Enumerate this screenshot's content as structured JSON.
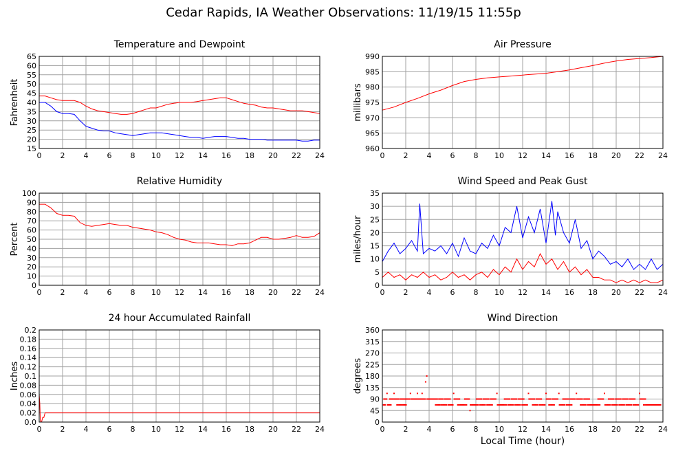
{
  "page": {
    "title": "Cedar Rapids, IA Weather Observations: 11/19/15 11:55p",
    "footer_xlabel": "Local Time (hour)"
  },
  "chart_data": [
    {
      "id": "temp",
      "type": "line",
      "title": "Temperature and Dewpoint",
      "ylabel": "Fahrenheit",
      "xlabel": "",
      "xlim": [
        0,
        24
      ],
      "ylim": [
        15,
        65
      ],
      "xticks": [
        0,
        2,
        4,
        6,
        8,
        10,
        12,
        14,
        16,
        18,
        20,
        22,
        24
      ],
      "yticks": [
        15,
        20,
        25,
        30,
        35,
        40,
        45,
        50,
        55,
        60,
        65
      ],
      "grid": true,
      "series": [
        {
          "color": "#ff0000",
          "x": [
            0,
            0.5,
            1,
            1.5,
            2,
            2.5,
            3,
            3.5,
            4,
            4.5,
            5,
            5.5,
            6,
            6.5,
            7,
            7.5,
            8,
            8.5,
            9,
            9.5,
            10,
            10.5,
            11,
            11.5,
            12,
            12.5,
            13,
            13.5,
            14,
            14.5,
            15,
            15.5,
            16,
            16.5,
            17,
            17.5,
            18,
            18.5,
            19,
            19.5,
            20,
            20.5,
            21,
            21.5,
            22,
            22.5,
            23,
            23.5,
            24
          ],
          "y": [
            43.5,
            43.5,
            42.5,
            41.5,
            41,
            41,
            41,
            40,
            38,
            36.5,
            35.5,
            35,
            34.5,
            34,
            33.5,
            33.5,
            34,
            35,
            36,
            37,
            37,
            38,
            39,
            39.5,
            40,
            40,
            40,
            40.5,
            41,
            41.5,
            42,
            42.5,
            42.5,
            41.5,
            40.5,
            39.5,
            39,
            38.5,
            37.5,
            37,
            37,
            36.5,
            36,
            35.5,
            35.5,
            35.5,
            35,
            34.5,
            34
          ]
        },
        {
          "color": "#0000ff",
          "x": [
            0,
            0.5,
            1,
            1.5,
            2,
            2.5,
            3,
            3.5,
            4,
            4.5,
            5,
            5.5,
            6,
            6.5,
            7,
            7.5,
            8,
            8.5,
            9,
            9.5,
            10,
            10.5,
            11,
            11.5,
            12,
            12.5,
            13,
            13.5,
            14,
            14.5,
            15,
            15.5,
            16,
            16.5,
            17,
            17.5,
            18,
            18.5,
            19,
            19.5,
            20,
            20.5,
            21,
            21.5,
            22,
            22.5,
            23,
            23.5,
            24
          ],
          "y": [
            40,
            40,
            38,
            35,
            34,
            34,
            33.5,
            30,
            27,
            26,
            25,
            24.5,
            24.5,
            23.5,
            23,
            22.5,
            22,
            22.5,
            23,
            23.5,
            23.5,
            23.5,
            23,
            22.5,
            22,
            21.5,
            21,
            21,
            20.5,
            21,
            21.5,
            21.5,
            21.5,
            21,
            20.5,
            20.5,
            20,
            20,
            20,
            19.5,
            19.5,
            19.5,
            19.5,
            19.5,
            19.5,
            19,
            19,
            19.5,
            19.5
          ]
        }
      ]
    },
    {
      "id": "pressure",
      "type": "line",
      "title": "Air Pressure",
      "ylabel": "millibars",
      "xlabel": "",
      "xlim": [
        0,
        24
      ],
      "ylim": [
        960,
        990
      ],
      "xticks": [
        0,
        2,
        4,
        6,
        8,
        10,
        12,
        14,
        16,
        18,
        20,
        22,
        24
      ],
      "yticks": [
        960,
        965,
        970,
        975,
        980,
        985,
        990
      ],
      "grid": true,
      "series": [
        {
          "color": "#ff0000",
          "x": [
            0,
            1,
            2,
            3,
            4,
            5,
            6,
            7,
            8,
            9,
            10,
            11,
            12,
            13,
            14,
            15,
            16,
            17,
            18,
            19,
            20,
            21,
            22,
            23,
            24
          ],
          "y": [
            972.5,
            973.5,
            975,
            976.3,
            977.8,
            979,
            980.5,
            981.8,
            982.5,
            983,
            983.3,
            983.6,
            983.9,
            984.2,
            984.5,
            985,
            985.6,
            986.3,
            987,
            987.8,
            988.5,
            989,
            989.3,
            989.6,
            990
          ]
        }
      ]
    },
    {
      "id": "humidity",
      "type": "line",
      "title": "Relative Humidity",
      "ylabel": "Percent",
      "xlabel": "",
      "xlim": [
        0,
        24
      ],
      "ylim": [
        0,
        100
      ],
      "xticks": [
        0,
        2,
        4,
        6,
        8,
        10,
        12,
        14,
        16,
        18,
        20,
        22,
        24
      ],
      "yticks": [
        0,
        10,
        20,
        30,
        40,
        50,
        60,
        70,
        80,
        90,
        100
      ],
      "grid": true,
      "series": [
        {
          "color": "#ff0000",
          "x": [
            0,
            0.5,
            1,
            1.5,
            2,
            2.5,
            3,
            3.5,
            4,
            4.5,
            5,
            5.5,
            6,
            6.5,
            7,
            7.5,
            8,
            8.5,
            9,
            9.5,
            10,
            10.5,
            11,
            11.5,
            12,
            12.5,
            13,
            13.5,
            14,
            14.5,
            15,
            15.5,
            16,
            16.5,
            17,
            17.5,
            18,
            18.5,
            19,
            19.5,
            20,
            20.5,
            21,
            21.5,
            22,
            22.5,
            23,
            23.5,
            24
          ],
          "y": [
            88,
            88,
            84,
            78,
            76,
            76,
            75,
            68,
            65,
            64,
            65,
            66,
            67,
            66,
            65,
            65,
            63,
            62,
            61,
            60,
            58,
            57,
            55,
            52,
            50,
            49,
            47,
            46,
            46,
            46,
            45,
            44,
            44,
            43,
            45,
            45,
            46,
            49,
            52,
            52,
            50,
            50,
            51,
            52,
            54,
            52,
            52,
            53,
            57
          ]
        }
      ]
    },
    {
      "id": "wind",
      "type": "line",
      "title": "Wind Speed and Peak Gust",
      "ylabel": "miles/hour",
      "xlabel": "",
      "xlim": [
        0,
        24
      ],
      "ylim": [
        0,
        35
      ],
      "xticks": [
        0,
        2,
        4,
        6,
        8,
        10,
        12,
        14,
        16,
        18,
        20,
        22,
        24
      ],
      "yticks": [
        0,
        5,
        10,
        15,
        20,
        25,
        30,
        35
      ],
      "grid": true,
      "series": [
        {
          "color": "#0000ff",
          "x": [
            0,
            0.5,
            1,
            1.5,
            2,
            2.5,
            3,
            3.2,
            3.5,
            4,
            4.5,
            5,
            5.5,
            6,
            6.5,
            7,
            7.5,
            8,
            8.5,
            9,
            9.5,
            10,
            10.5,
            11,
            11.5,
            12,
            12.5,
            13,
            13.5,
            14,
            14.5,
            14.8,
            15,
            15.5,
            16,
            16.5,
            17,
            17.5,
            18,
            18.5,
            19,
            19.5,
            20,
            20.5,
            21,
            21.5,
            22,
            22.5,
            23,
            23.5,
            24
          ],
          "y": [
            9,
            13,
            16,
            12,
            14,
            17,
            13,
            31,
            12,
            14,
            13,
            15,
            12,
            16,
            11,
            18,
            13,
            12,
            16,
            14,
            19,
            15,
            22,
            20,
            30,
            18,
            26,
            20,
            29,
            16,
            32,
            19,
            28,
            20,
            16,
            25,
            14,
            17,
            10,
            13,
            11,
            8,
            9,
            7,
            10,
            6,
            8,
            6,
            10,
            6,
            8
          ]
        },
        {
          "color": "#ff0000",
          "x": [
            0,
            0.5,
            1,
            1.5,
            2,
            2.5,
            3,
            3.5,
            4,
            4.5,
            5,
            5.5,
            6,
            6.5,
            7,
            7.5,
            8,
            8.5,
            9,
            9.5,
            10,
            10.5,
            11,
            11.5,
            12,
            12.5,
            13,
            13.5,
            14,
            14.5,
            15,
            15.5,
            16,
            16.5,
            17,
            17.5,
            18,
            18.5,
            19,
            19.5,
            20,
            20.5,
            21,
            21.5,
            22,
            22.5,
            23,
            23.5,
            24
          ],
          "y": [
            3,
            5,
            3,
            4,
            2,
            4,
            3,
            5,
            3,
            4,
            2,
            3,
            5,
            3,
            4,
            2,
            4,
            5,
            3,
            6,
            4,
            7,
            5,
            10,
            6,
            9,
            7,
            12,
            8,
            10,
            6,
            9,
            5,
            7,
            4,
            6,
            3,
            3,
            2,
            2,
            1,
            2,
            1,
            2,
            1,
            2,
            1,
            1,
            2
          ]
        }
      ]
    },
    {
      "id": "rain",
      "type": "line",
      "title": "24 hour Accumulated Rainfall",
      "ylabel": "Inches",
      "xlabel": "",
      "xlim": [
        0,
        24
      ],
      "ylim": [
        0,
        0.2
      ],
      "xticks": [
        0,
        2,
        4,
        6,
        8,
        10,
        12,
        14,
        16,
        18,
        20,
        22,
        24
      ],
      "yticks": [
        "0.0",
        "0.02",
        "0.04",
        "0.06",
        "0.08",
        "0.1",
        "0.12",
        "0.14",
        "0.16",
        "0.18",
        "0.2"
      ],
      "grid": true,
      "series": [
        {
          "color": "#ff0000",
          "x": [
            0,
            0.05,
            0.1,
            0.2,
            0.3,
            0.4,
            0.5,
            24
          ],
          "y": [
            0.06,
            0.04,
            0.0,
            0.0,
            0.01,
            0.01,
            0.02,
            0.02
          ]
        }
      ]
    },
    {
      "id": "direction",
      "type": "scatter",
      "title": "Wind Direction",
      "ylabel": "degrees",
      "xlabel": "Local Time (hour)",
      "xlim": [
        0,
        24
      ],
      "ylim": [
        0,
        360
      ],
      "xticks": [
        0,
        2,
        4,
        6,
        8,
        10,
        12,
        14,
        16,
        18,
        20,
        22,
        24
      ],
      "yticks": [
        0,
        45,
        90,
        135,
        180,
        225,
        270,
        315,
        360
      ],
      "grid": true,
      "series": [
        {
          "color": "#ff0000",
          "x": [
            0.1,
            0.3,
            0.4,
            0.6,
            0.8,
            1,
            1.2,
            1.5,
            1.7,
            1.9,
            2.1,
            2.4,
            2.6,
            2.8,
            3,
            3.2,
            3.4,
            3.6,
            3.7,
            3.8,
            4,
            4.2,
            4.5,
            4.8,
            5,
            5.3,
            5.6,
            5.9,
            6.1,
            6.4,
            6.7,
            7,
            7.3,
            7.5,
            7.7,
            8,
            8.3,
            8.6,
            8.9,
            9.2,
            9.5,
            9.8,
            10.1,
            10.4,
            10.7,
            11,
            11.3,
            11.6,
            11.9,
            12.2,
            12.5,
            12.8,
            13.1,
            13.4,
            13.7,
            14,
            14.2,
            14.5,
            14.8,
            15.1,
            15.4,
            15.7,
            16,
            16.3,
            16.6,
            16.9,
            17.2,
            17.5,
            17.8,
            18.1,
            18.4,
            18.7,
            19,
            19.3,
            19.6,
            19.9,
            20.2,
            20.5,
            20.8,
            21.1,
            21.4,
            21.7,
            22,
            22.3,
            22.6,
            22.9,
            23.2,
            23.5,
            23.8
          ],
          "y": [
            67,
            90,
            112,
            67,
            90,
            112,
            90,
            67,
            90,
            67,
            90,
            112,
            90,
            90,
            112,
            90,
            112,
            90,
            157,
            180,
            90,
            90,
            90,
            67,
            90,
            67,
            90,
            67,
            112,
            90,
            67,
            67,
            90,
            45,
            67,
            67,
            90,
            67,
            90,
            67,
            90,
            112,
            67,
            67,
            90,
            67,
            90,
            67,
            90,
            67,
            112,
            90,
            67,
            90,
            67,
            112,
            90,
            67,
            90,
            112,
            67,
            90,
            67,
            90,
            112,
            90,
            67,
            90,
            67,
            67,
            67,
            90,
            112,
            67,
            90,
            67,
            90,
            67,
            90,
            67,
            90,
            67,
            112,
            90,
            67,
            67,
            67,
            67,
            67
          ]
        }
      ]
    }
  ]
}
